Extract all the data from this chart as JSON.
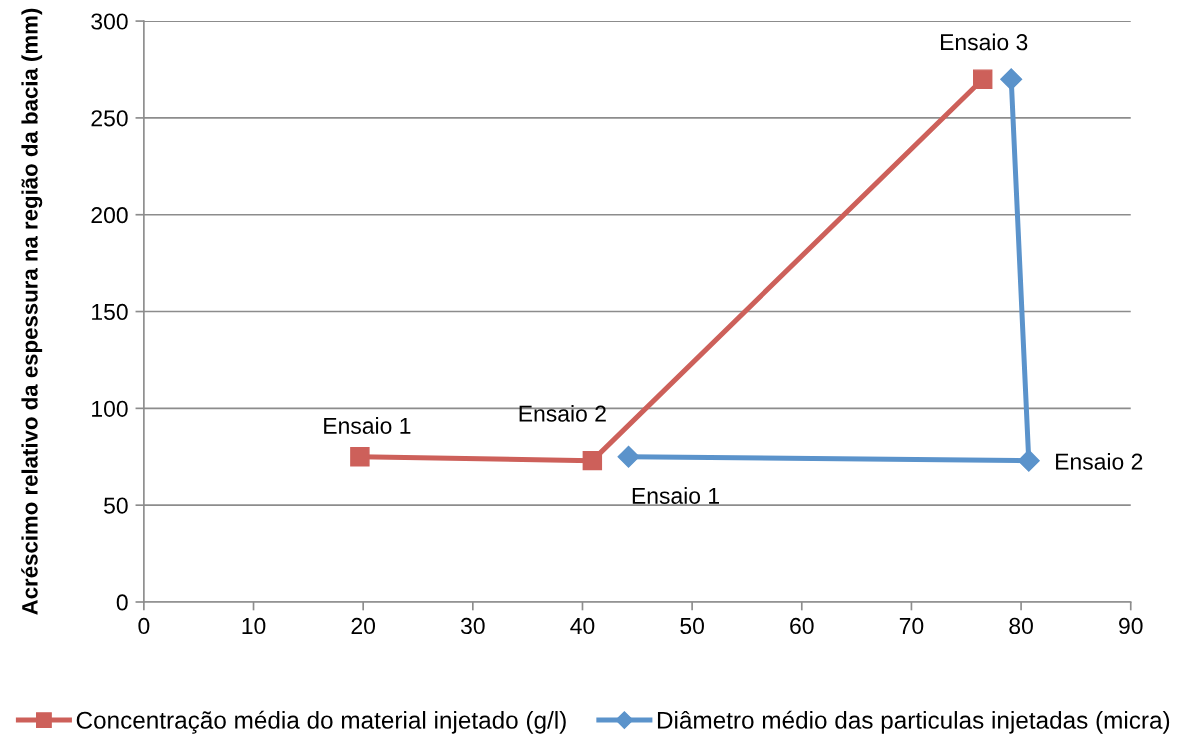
{
  "chart_data": {
    "type": "line",
    "ylabel": "Acréscimo relativo da espessura na região da bacia (mm)",
    "xlim": [
      0,
      90
    ],
    "xticks": [
      0,
      10,
      20,
      30,
      40,
      50,
      60,
      70,
      80,
      90
    ],
    "ylim": [
      0,
      300
    ],
    "yticks": [
      0,
      50,
      100,
      150,
      200,
      250,
      300
    ],
    "grid": "y",
    "legend": "bottom",
    "line_style": "solid",
    "series": [
      {
        "name": "Concentração média do material injetado (g/l)",
        "color": "#cd605a",
        "marker": "square",
        "x": [
          19.7,
          40.9,
          76.5
        ],
        "values": [
          75,
          73,
          270
        ]
      },
      {
        "name": "Diâmetro médio das particulas injetadas (micra)",
        "color": "#5b93cb",
        "marker": "diamond",
        "x": [
          44.2,
          80.7,
          79.1
        ],
        "values": [
          75,
          73,
          270
        ]
      }
    ],
    "annotations": [
      {
        "text": "Ensaio 1",
        "x": 19.7,
        "y": 75
      },
      {
        "text": "Ensaio 2",
        "x": 40.9,
        "y": 73
      },
      {
        "text": "Ensaio 3",
        "x": 76.5,
        "y": 270
      },
      {
        "text": "Ensaio 1",
        "x": 44.2,
        "y": 75
      },
      {
        "text": "Ensaio 2",
        "x": 80.7,
        "y": 73
      }
    ]
  }
}
